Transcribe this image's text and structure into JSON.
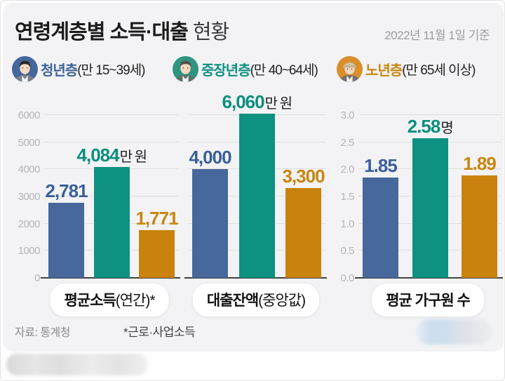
{
  "header": {
    "title_bold": "연령계층별 소득·대출",
    "title_light": "현황",
    "date": "2022년 11월 1일 기준"
  },
  "legend": {
    "items": [
      {
        "name": "청년층",
        "range": "(만 15~39세)",
        "color": "#3E639B",
        "icon": "young-man-avatar"
      },
      {
        "name": "중장년층",
        "range": "(만 40~64세)",
        "color": "#0E9181",
        "icon": "middle-aged-man-avatar"
      },
      {
        "name": "노년층",
        "range": "(만 65세 이상)",
        "color": "#C8860F",
        "icon": "elderly-man-avatar"
      }
    ]
  },
  "colors": {
    "bars": [
      "#47689B",
      "#0E9181",
      "#C9820E"
    ],
    "value_labels": [
      "#3A5F99",
      "#0B8F7D",
      "#C8860F"
    ],
    "grid": "#dedee1",
    "axis_line": "#404040",
    "tick": "#b5b5b8",
    "card_background": "#f3f3f5"
  },
  "categories_en": [
    "youth",
    "middle-aged",
    "elderly"
  ],
  "chart_data": [
    {
      "type": "bar",
      "title_bold": "평균소득",
      "title_paren": "(연간)*",
      "categories": [
        "청년층",
        "중장년층",
        "노년층"
      ],
      "values": [
        2781,
        4084,
        1771
      ],
      "value_labels": [
        "2,781",
        "4,084",
        "1,771"
      ],
      "unit": "만 원",
      "unit_on_index": 1,
      "ymax": 6000,
      "ylim": [
        0,
        6200
      ],
      "yticks": [
        0,
        1000,
        2000,
        3000,
        4000,
        5000,
        6000
      ],
      "tick_label_strings": [
        "0",
        "1000",
        "2000",
        "3000",
        "4000",
        "5000",
        "6000"
      ],
      "show_tick_labels": true,
      "grid": true
    },
    {
      "type": "bar",
      "title_bold": "대출잔액",
      "title_paren": "(중앙값)",
      "categories": [
        "청년층",
        "중장년층",
        "노년층"
      ],
      "values": [
        4000,
        6060,
        3300
      ],
      "value_labels": [
        "4,000",
        "6,060",
        "3,300"
      ],
      "unit": "만 원",
      "unit_on_index": 1,
      "ymax": 6000,
      "ylim": [
        0,
        6200
      ],
      "yticks": [
        0,
        1000,
        2000,
        3000,
        4000,
        5000,
        6000
      ],
      "tick_label_strings": [],
      "show_tick_labels": false,
      "grid": true
    },
    {
      "type": "bar",
      "title_bold": "평균 가구원 수",
      "title_paren": "",
      "categories": [
        "청년층",
        "중장년층",
        "노년층"
      ],
      "values": [
        1.85,
        2.58,
        1.89
      ],
      "value_labels": [
        "1.85",
        "2.58",
        "1.89"
      ],
      "unit": "명",
      "unit_on_index": 1,
      "ymax": 3.0,
      "ylim": [
        0,
        3.1
      ],
      "yticks": [
        0,
        0.5,
        1.0,
        1.5,
        2.0,
        2.5,
        3.0
      ],
      "tick_label_strings": [
        "0.0",
        "0.5",
        "1.0",
        "1.5",
        "2.0",
        "2.5",
        "3.0"
      ],
      "show_tick_labels": true,
      "grid": true
    }
  ],
  "footer": {
    "source": "자료: 통계청",
    "note": "*근로·사업소득"
  }
}
